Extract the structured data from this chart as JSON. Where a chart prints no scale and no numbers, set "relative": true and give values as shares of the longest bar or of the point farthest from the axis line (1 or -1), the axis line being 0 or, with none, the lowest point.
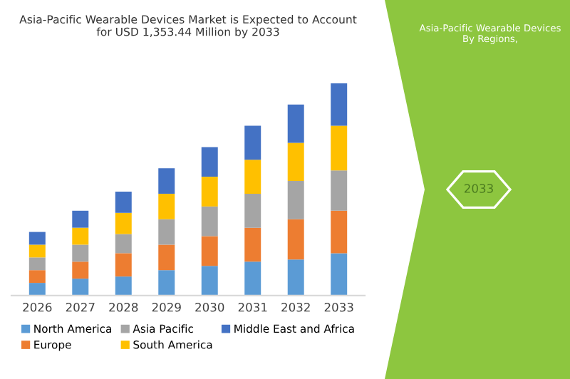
{
  "chart_data": {
    "type": "bar",
    "stacked": true,
    "relative": true,
    "title": "Asia-Pacific Wearable Devices Market is Expected to Account\nfor USD 1,353.44 Million by 2033",
    "categories": [
      "2026",
      "2027",
      "2028",
      "2029",
      "2030",
      "2031",
      "2032",
      "2033"
    ],
    "series": [
      {
        "name": "North America",
        "color": "#5b9bd5",
        "values": [
          0.06,
          0.08,
          0.09,
          0.12,
          0.14,
          0.16,
          0.17,
          0.2
        ]
      },
      {
        "name": "Europe",
        "color": "#ed7d31",
        "values": [
          0.06,
          0.08,
          0.11,
          0.12,
          0.14,
          0.16,
          0.19,
          0.2
        ]
      },
      {
        "name": "Asia Pacific",
        "color": "#a5a5a5",
        "values": [
          0.06,
          0.08,
          0.09,
          0.12,
          0.14,
          0.16,
          0.18,
          0.19
        ]
      },
      {
        "name": "South America",
        "color": "#ffc000",
        "values": [
          0.06,
          0.08,
          0.1,
          0.12,
          0.14,
          0.16,
          0.18,
          0.21
        ]
      },
      {
        "name": "Middle East and Africa",
        "color": "#4472c4",
        "values": [
          0.06,
          0.08,
          0.1,
          0.12,
          0.14,
          0.16,
          0.18,
          0.2
        ]
      }
    ],
    "legend": "bottom",
    "grid": false,
    "annotations": [
      "Asia-Pacific Wearable Devices\nBy Regions,",
      "2033"
    ]
  }
}
